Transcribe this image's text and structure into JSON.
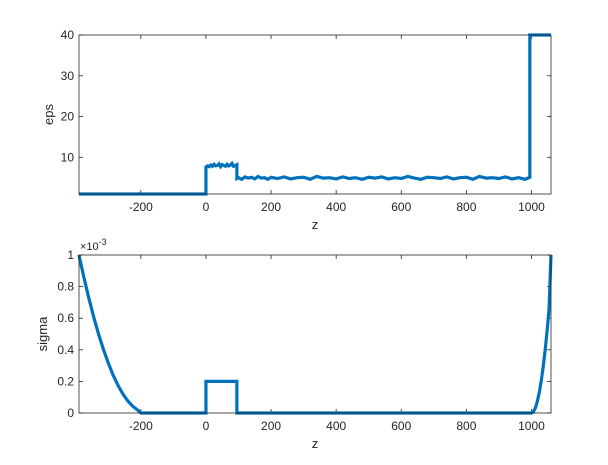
{
  "chart_data": [
    {
      "type": "line",
      "title": "",
      "xlabel": "z",
      "ylabel": "eps",
      "xlim": [
        -390,
        1060
      ],
      "ylim": [
        1,
        40
      ],
      "xticks": [
        -200,
        0,
        200,
        400,
        600,
        800,
        1000
      ],
      "yticks": [
        10,
        20,
        30,
        40
      ],
      "grid": false,
      "series": [
        {
          "color": "#0072BD",
          "x": [
            -390,
            0,
            0,
            5,
            10,
            15,
            20,
            25,
            30,
            35,
            40,
            45,
            50,
            55,
            60,
            65,
            70,
            75,
            80,
            85,
            90,
            95,
            95,
            100,
            110,
            120,
            130,
            140,
            150,
            160,
            170,
            180,
            190,
            200,
            220,
            240,
            260,
            280,
            300,
            320,
            340,
            360,
            380,
            400,
            420,
            440,
            460,
            480,
            500,
            520,
            540,
            560,
            580,
            600,
            620,
            640,
            660,
            680,
            700,
            720,
            740,
            760,
            780,
            800,
            820,
            840,
            860,
            880,
            900,
            920,
            940,
            960,
            980,
            995,
            995,
            1060
          ],
          "y": [
            1,
            1,
            7.6,
            7.9,
            7.7,
            8.1,
            7.8,
            8.3,
            7.9,
            8.0,
            8.4,
            7.7,
            8.2,
            8.0,
            7.8,
            8.3,
            7.9,
            8.1,
            8.5,
            7.8,
            8.0,
            8.2,
            4.8,
            5.0,
            4.6,
            5.2,
            4.9,
            5.1,
            4.7,
            5.3,
            4.9,
            5.0,
            4.6,
            5.1,
            4.8,
            5.2,
            4.7,
            5.0,
            5.1,
            4.6,
            5.3,
            4.9,
            5.0,
            4.7,
            5.2,
            4.8,
            5.0,
            4.6,
            5.1,
            4.9,
            5.2,
            4.7,
            5.0,
            4.8,
            5.3,
            4.9,
            4.6,
            5.1,
            5.0,
            4.8,
            5.2,
            4.7,
            5.0,
            5.1,
            4.6,
            5.3,
            4.9,
            5.0,
            4.8,
            5.2,
            4.7,
            5.0,
            4.6,
            5.1,
            40,
            40
          ]
        }
      ]
    },
    {
      "type": "line",
      "title": "",
      "xlabel": "z",
      "ylabel": "sigma",
      "y_exponent_label": "×10",
      "y_exponent_power": "-3",
      "xlim": [
        -390,
        1060
      ],
      "ylim": [
        0,
        1
      ],
      "xticks": [
        -200,
        0,
        200,
        400,
        600,
        800,
        1000
      ],
      "yticks": [
        0,
        0.2,
        0.4,
        0.6,
        0.8,
        1
      ],
      "grid": false,
      "series": [
        {
          "color": "#0072BD",
          "x": [
            -390,
            -375,
            -360,
            -345,
            -330,
            -315,
            -300,
            -285,
            -270,
            -255,
            -240,
            -225,
            -210,
            -200,
            0,
            0,
            95,
            95,
            1000,
            1006,
            1012,
            1018,
            1024,
            1030,
            1036,
            1042,
            1048,
            1054,
            1060
          ],
          "y": [
            1.0,
            0.858,
            0.729,
            0.609,
            0.5,
            0.403,
            0.316,
            0.239,
            0.174,
            0.12,
            0.076,
            0.043,
            0.019,
            0,
            0,
            0.2,
            0.2,
            0,
            0,
            0.008,
            0.032,
            0.073,
            0.13,
            0.203,
            0.292,
            0.397,
            0.519,
            0.657,
            1.0
          ]
        }
      ]
    }
  ]
}
